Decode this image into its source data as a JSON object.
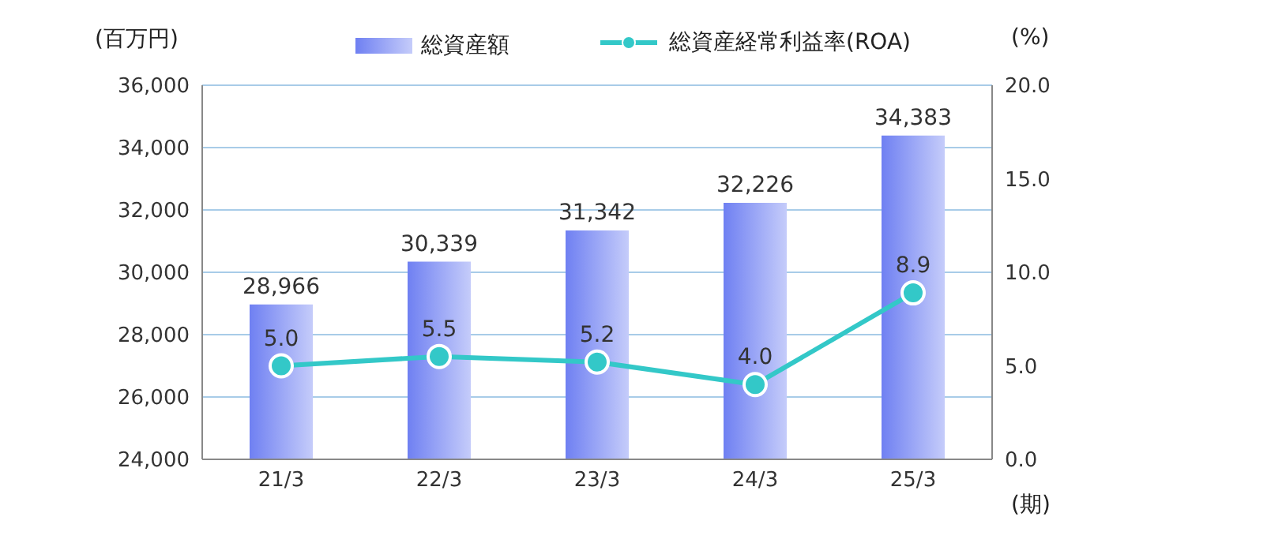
{
  "chart_data": {
    "type": "bar",
    "categories": [
      "21/3",
      "22/3",
      "23/3",
      "24/3",
      "25/3"
    ],
    "series": [
      {
        "name": "総資産額",
        "color": "#6f80f2",
        "values": [
          28966,
          30339,
          31342,
          32226,
          34383
        ],
        "value_labels": [
          "28,966",
          "30,339",
          "31,342",
          "32,226",
          "34,383"
        ]
      },
      {
        "name": "総資産経常利益率(ROA)",
        "type": "line",
        "axis": "y2",
        "color": "#33c8c8",
        "values": [
          5.0,
          5.5,
          5.2,
          4.0,
          8.9
        ],
        "value_labels": [
          "5.0",
          "5.5",
          "5.2",
          "4.0",
          "8.9"
        ]
      }
    ],
    "ylabel": "(百万円)",
    "y2label": "(%)",
    "xlabel": "(期)",
    "ylim": [
      24000,
      36000
    ],
    "yticks": [
      {
        "value": 24000,
        "label": "24,000"
      },
      {
        "value": 26000,
        "label": "26,000"
      },
      {
        "value": 28000,
        "label": "28,000"
      },
      {
        "value": 30000,
        "label": "30,000"
      },
      {
        "value": 32000,
        "label": "32,000"
      },
      {
        "value": 34000,
        "label": "34,000"
      },
      {
        "value": 36000,
        "label": "36,000"
      }
    ],
    "y2lim": [
      0,
      20
    ],
    "y2ticks": [
      {
        "value": 0,
        "label": "0.0"
      },
      {
        "value": 5,
        "label": "5.0"
      },
      {
        "value": 10,
        "label": "10.0"
      },
      {
        "value": 15,
        "label": "15.0"
      },
      {
        "value": 20,
        "label": "20.0"
      }
    ],
    "grid": "y",
    "legend": "top",
    "marker": "circle"
  }
}
